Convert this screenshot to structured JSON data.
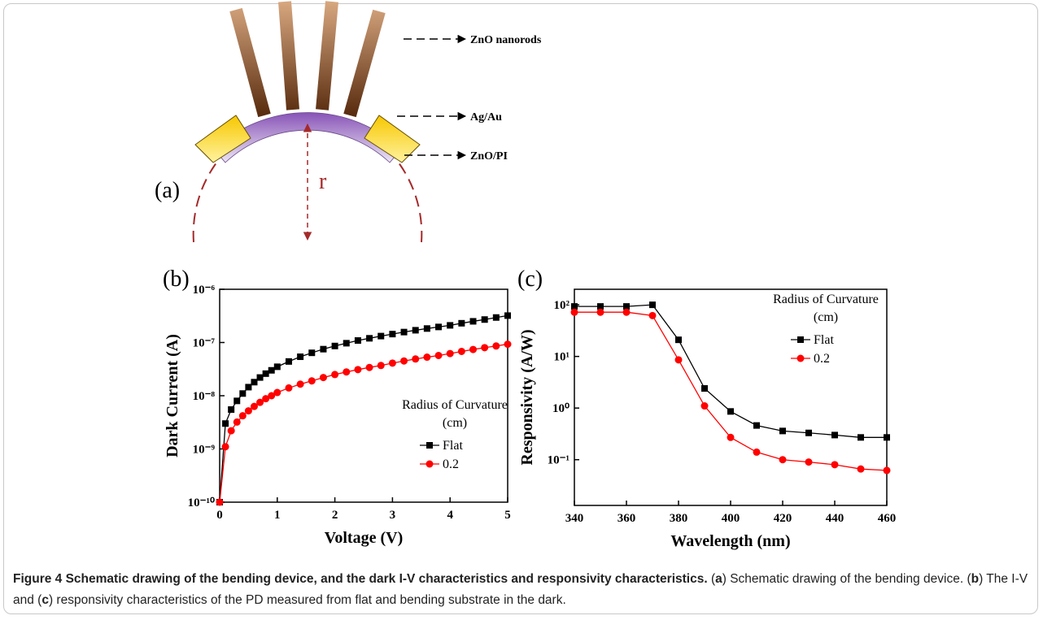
{
  "schematic": {
    "panel_label": "(a)",
    "radius_label": "r",
    "labels": [
      "ZnO nanorods",
      "Ag/Au",
      "ZnO/PI"
    ]
  },
  "chart_data": [
    {
      "type": "line",
      "panel_label": "(b)",
      "x_label": "Voltage (V)",
      "y_label": "Dark Current (A)",
      "log_y": true,
      "xlim": [
        0,
        5
      ],
      "xticks": [
        0,
        1,
        2,
        3,
        4,
        5
      ],
      "ylim": [
        1e-10,
        1e-06
      ],
      "yticks": [
        {
          "value": 1e-10,
          "label": "10⁻¹⁰"
        },
        {
          "value": 1e-09,
          "label": "10⁻⁹"
        },
        {
          "value": 1e-08,
          "label": "10⁻⁸"
        },
        {
          "value": 1e-07,
          "label": "10⁻⁷"
        },
        {
          "value": 1e-06,
          "label": "10⁻⁶"
        }
      ],
      "legend": "lower right",
      "legend_title": "Radius of Curvature (cm)",
      "x": [
        0,
        0.1,
        0.2,
        0.3,
        0.4,
        0.5,
        0.6,
        0.7,
        0.8,
        0.9,
        1,
        1.2,
        1.4,
        1.6,
        1.8,
        2,
        2.2,
        2.4,
        2.6,
        2.8,
        3,
        3.2,
        3.4,
        3.6,
        3.8,
        4,
        4.2,
        4.4,
        4.6,
        4.8,
        5
      ],
      "series": [
        {
          "name": "Flat",
          "color": "#000000",
          "marker": "square",
          "values": [
            1e-10,
            3e-09,
            5.5e-09,
            8e-09,
            1.1e-08,
            1.45e-08,
            1.8e-08,
            2.2e-08,
            2.6e-08,
            3e-08,
            3.5e-08,
            4.4e-08,
            5.4e-08,
            6.4e-08,
            7.5e-08,
            8.6e-08,
            9.7e-08,
            1.09e-07,
            1.2e-07,
            1.32e-07,
            1.44e-07,
            1.57e-07,
            1.7e-07,
            1.83e-07,
            1.96e-07,
            2.1e-07,
            2.3e-07,
            2.5e-07,
            2.7e-07,
            2.95e-07,
            3.2e-07
          ]
        },
        {
          "name": "0.2",
          "color": "#ff0000",
          "marker": "circle",
          "values": [
            1e-10,
            1.1e-09,
            2.2e-09,
            3.2e-09,
            4.2e-09,
            5.2e-09,
            6.3e-09,
            7.5e-09,
            8.8e-09,
            1e-08,
            1.15e-08,
            1.4e-08,
            1.65e-08,
            1.9e-08,
            2.2e-08,
            2.5e-08,
            2.8e-08,
            3.1e-08,
            3.4e-08,
            3.7e-08,
            4.1e-08,
            4.5e-08,
            4.9e-08,
            5.3e-08,
            5.7e-08,
            6.2e-08,
            6.8e-08,
            7.4e-08,
            8e-08,
            8.6e-08,
            9.3e-08
          ]
        }
      ]
    },
    {
      "type": "line",
      "panel_label": "(c)",
      "x_label": "Wavelength (nm)",
      "y_label": "Responsivity (A/W)",
      "log_y": true,
      "xlim": [
        340,
        460
      ],
      "xticks": [
        340,
        360,
        380,
        400,
        420,
        440,
        460
      ],
      "ylim": [
        0.013,
        200
      ],
      "yticks": [
        {
          "value": 0.1,
          "label": "10⁻¹"
        },
        {
          "value": 1,
          "label": "10⁰"
        },
        {
          "value": 10,
          "label": "10¹"
        },
        {
          "value": 100,
          "label": "10²"
        }
      ],
      "legend": "upper right",
      "legend_title": "Radius of Curvature (cm)",
      "x": [
        340,
        350,
        360,
        370,
        380,
        390,
        400,
        410,
        420,
        430,
        440,
        450,
        460
      ],
      "series": [
        {
          "name": "Flat",
          "color": "#000000",
          "marker": "square",
          "values": [
            93,
            93,
            93,
            100,
            21,
            2.4,
            0.86,
            0.46,
            0.36,
            0.33,
            0.3,
            0.27,
            0.27
          ]
        },
        {
          "name": "0.2",
          "color": "#ff0000",
          "marker": "circle",
          "values": [
            72,
            72,
            72,
            62,
            8.6,
            1.1,
            0.27,
            0.14,
            0.1,
            0.09,
            0.08,
            0.066,
            0.062
          ]
        }
      ]
    }
  ],
  "caption": {
    "title": "Figure 4 Schematic drawing of the bending device, and the dark I-V characteristics and responsivity characteristics.",
    "body": [
      "(",
      "a",
      ") Schematic drawing of the bending device. (",
      "b",
      ") The I-V and (",
      "c",
      ") responsivity characteristics of the PD measured from flat and bending substrate in the dark."
    ]
  }
}
